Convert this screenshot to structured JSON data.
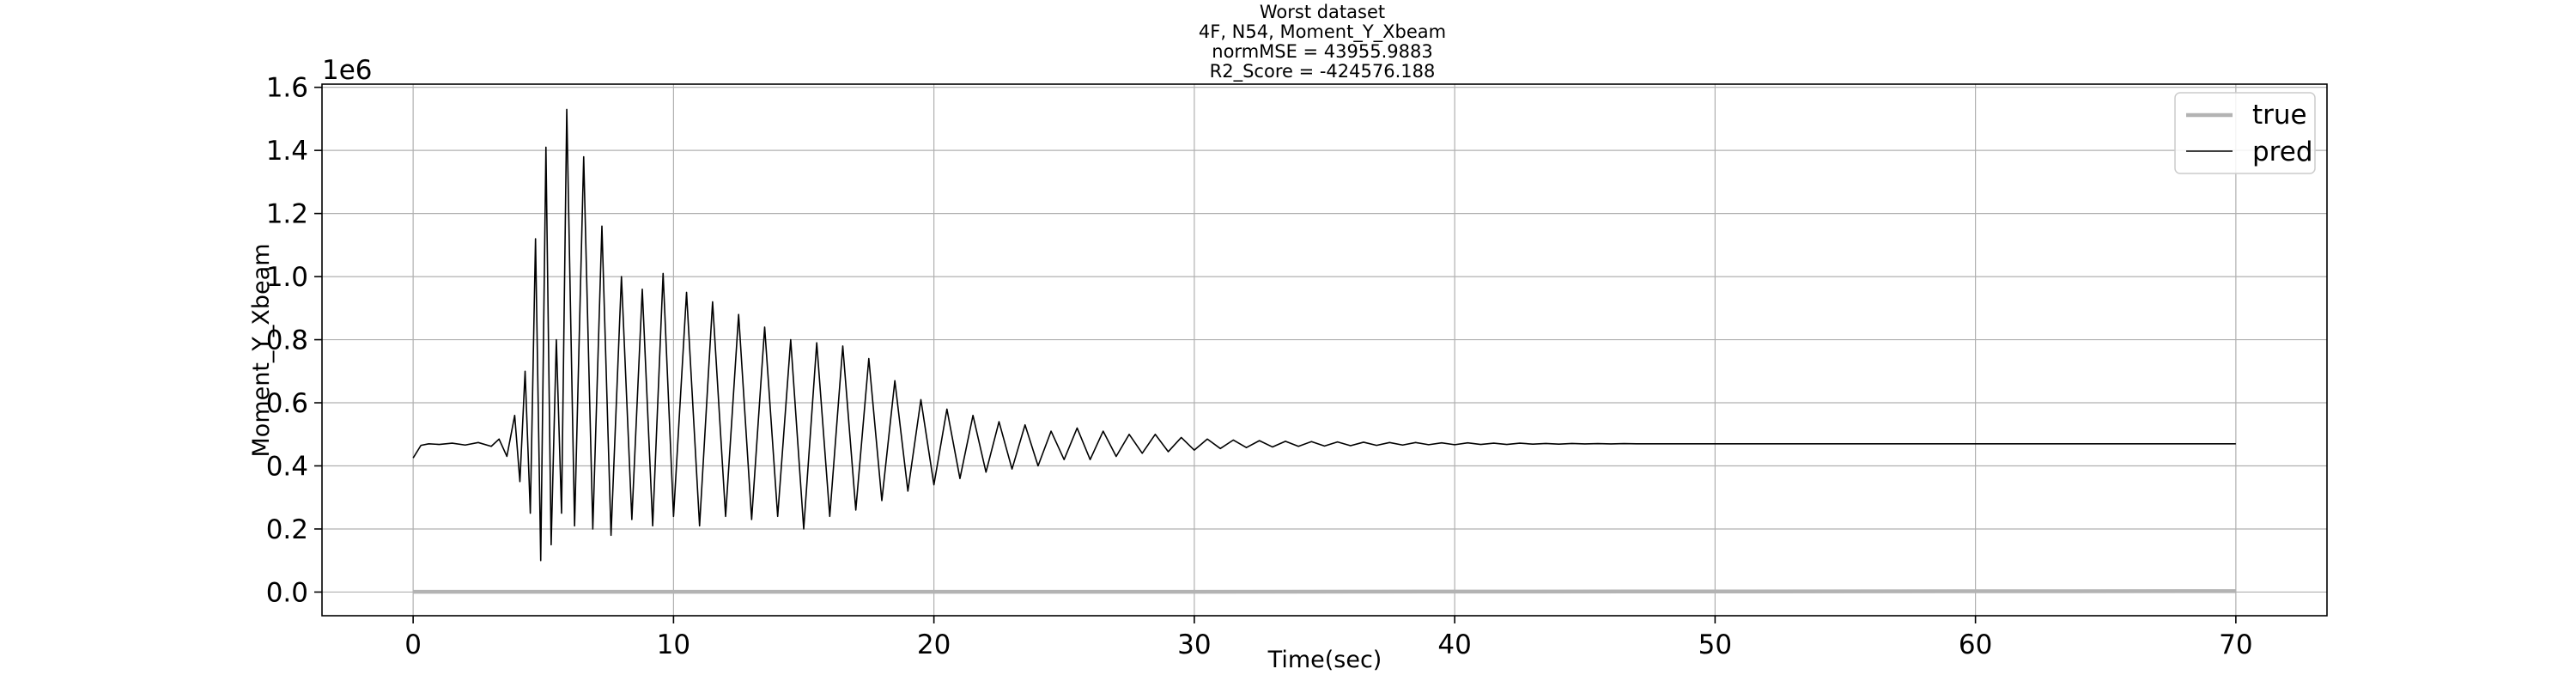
{
  "chart_data": {
    "type": "line",
    "title_lines": [
      "Worst dataset",
      "4F, N54, Moment_Y_Xbeam",
      "normMSE = 43955.9883",
      "R2_Score = -424576.188"
    ],
    "xlabel": "Time(sec)",
    "ylabel": "Moment_Y_Xbeam",
    "y_offset_label": "1e6",
    "xlim": [
      -3.5,
      73.5
    ],
    "ylim": [
      -75000,
      1610000
    ],
    "x_ticks": [
      0,
      10,
      20,
      30,
      40,
      50,
      60,
      70
    ],
    "x_tick_labels": [
      "0",
      "10",
      "20",
      "30",
      "40",
      "50",
      "60",
      "70"
    ],
    "y_ticks": [
      0,
      200000,
      400000,
      600000,
      800000,
      1000000,
      1200000,
      1400000,
      1600000
    ],
    "y_tick_labels": [
      "0.0",
      "0.2",
      "0.4",
      "0.6",
      "0.8",
      "1.0",
      "1.2",
      "1.4",
      "1.6"
    ],
    "grid": true,
    "legend_position": "top-right",
    "series": [
      {
        "name": "true",
        "color": "#b3b3b3",
        "x": [
          0,
          10,
          20,
          30,
          40,
          50,
          60,
          70
        ],
        "values": [
          1000,
          1000,
          1000,
          1000,
          1500,
          2000,
          2500,
          3000
        ]
      },
      {
        "name": "pred",
        "color": "#000000",
        "x": [
          0.0,
          0.3,
          0.6,
          1.0,
          1.5,
          2.0,
          2.5,
          3.0,
          3.3,
          3.6,
          3.9,
          4.1,
          4.3,
          4.5,
          4.7,
          4.9,
          5.1,
          5.3,
          5.5,
          5.7,
          5.9,
          6.2,
          6.55,
          6.9,
          7.25,
          7.6,
          8.0,
          8.4,
          8.8,
          9.2,
          9.6,
          10.0,
          10.5,
          11.0,
          11.5,
          12.0,
          12.5,
          13.0,
          13.5,
          14.0,
          14.5,
          15.0,
          15.5,
          16.0,
          16.5,
          17.0,
          17.5,
          18.0,
          18.5,
          19.0,
          19.5,
          20.0,
          20.5,
          21.0,
          21.5,
          22.0,
          22.5,
          23.0,
          23.5,
          24.0,
          24.5,
          25.0,
          25.5,
          26.0,
          26.5,
          27.0,
          27.5,
          28.0,
          28.5,
          29.0,
          29.5,
          30.0,
          30.5,
          31.0,
          31.5,
          32.0,
          32.5,
          33.0,
          33.5,
          34.0,
          34.5,
          35.0,
          35.5,
          36.0,
          36.5,
          37.0,
          37.5,
          38.0,
          38.5,
          39.0,
          39.5,
          40.0,
          40.5,
          41.0,
          41.5,
          42.0,
          42.5,
          43.0,
          43.5,
          44.0,
          44.5,
          45.0,
          45.5,
          46.0,
          46.5,
          47.0,
          48.0,
          50.0,
          55.0,
          60.0,
          65.0,
          70.0
        ],
        "values": [
          425000,
          465000,
          470000,
          468000,
          472000,
          466000,
          474000,
          462000,
          485000,
          430000,
          560000,
          350000,
          700000,
          250000,
          1120000,
          100000,
          1410000,
          150000,
          800000,
          250000,
          1530000,
          210000,
          1380000,
          200000,
          1160000,
          180000,
          1000000,
          230000,
          960000,
          210000,
          1010000,
          240000,
          950000,
          210000,
          920000,
          240000,
          880000,
          230000,
          840000,
          240000,
          800000,
          200000,
          790000,
          240000,
          780000,
          260000,
          740000,
          290000,
          670000,
          320000,
          610000,
          340000,
          580000,
          360000,
          560000,
          380000,
          540000,
          390000,
          530000,
          400000,
          510000,
          420000,
          520000,
          420000,
          510000,
          430000,
          500000,
          440000,
          500000,
          445000,
          490000,
          450000,
          485000,
          455000,
          482000,
          458000,
          480000,
          460000,
          478000,
          462000,
          477000,
          463000,
          476000,
          464000,
          475000,
          465000,
          474000,
          466000,
          474000,
          467000,
          473000,
          467000,
          473000,
          468000,
          472000,
          468000,
          472000,
          469000,
          471000,
          469000,
          471000,
          469500,
          470500,
          469500,
          470500,
          470000,
          470000,
          470000,
          470000,
          470000,
          470000,
          470000
        ]
      }
    ]
  }
}
